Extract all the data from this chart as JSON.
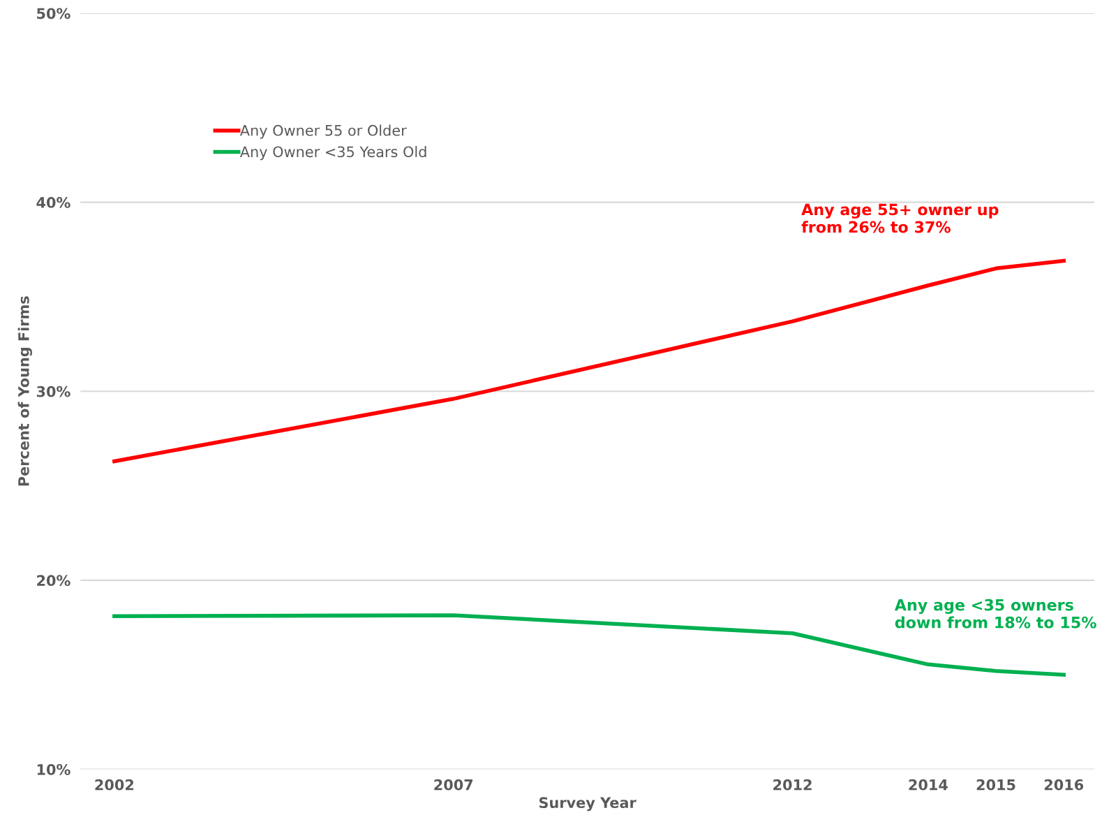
{
  "chart_data": {
    "type": "line",
    "xlabel": "Survey Year",
    "ylabel": "Percent of Young Firms",
    "x": [
      2002,
      2007,
      2012,
      2014,
      2015,
      2016
    ],
    "series": [
      {
        "name": "Any Owner 55 or Older",
        "color": "#ff0000",
        "values": [
          26.3,
          29.6,
          33.7,
          35.6,
          36.5,
          36.9
        ]
      },
      {
        "name": "Any Owner <35 Years Old",
        "color": "#00b050",
        "values": [
          18.1,
          18.15,
          17.2,
          15.55,
          15.2,
          15.0
        ]
      }
    ],
    "annotations": [
      "Any age 55+ owner up\nfrom 26% to 37%",
      "Any age <35 owners\ndown from 18% to 15%"
    ],
    "xlim": [
      2001.5,
      2016.45
    ],
    "xticks": [
      2002,
      2007,
      2012,
      2014,
      2015,
      2016
    ],
    "ylim": [
      10,
      50
    ],
    "yticks": [
      {
        "value": 10,
        "label": "10%"
      },
      {
        "value": 20,
        "label": "20%"
      },
      {
        "value": 30,
        "label": "30%"
      },
      {
        "value": 40,
        "label": "40%"
      },
      {
        "value": 50,
        "label": "50%"
      }
    ],
    "grid": "y",
    "legend": "top left",
    "marker": "none",
    "line_style": "solid"
  }
}
